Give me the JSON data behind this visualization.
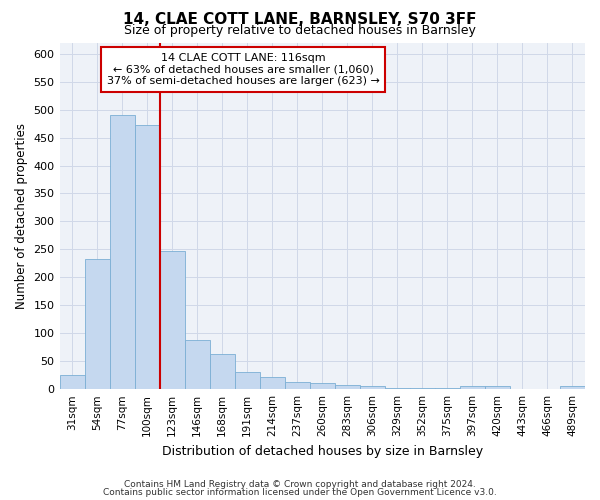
{
  "title": "14, CLAE COTT LANE, BARNSLEY, S70 3FF",
  "subtitle": "Size of property relative to detached houses in Barnsley",
  "xlabel": "Distribution of detached houses by size in Barnsley",
  "ylabel": "Number of detached properties",
  "footnote1": "Contains HM Land Registry data © Crown copyright and database right 2024.",
  "footnote2": "Contains public sector information licensed under the Open Government Licence v3.0.",
  "categories": [
    "31sqm",
    "54sqm",
    "77sqm",
    "100sqm",
    "123sqm",
    "146sqm",
    "168sqm",
    "191sqm",
    "214sqm",
    "237sqm",
    "260sqm",
    "283sqm",
    "306sqm",
    "329sqm",
    "352sqm",
    "375sqm",
    "397sqm",
    "420sqm",
    "443sqm",
    "466sqm",
    "489sqm"
  ],
  "values": [
    25,
    232,
    490,
    472,
    248,
    88,
    63,
    30,
    22,
    13,
    11,
    8,
    5,
    3,
    3,
    3,
    6,
    6,
    0,
    0,
    5
  ],
  "bar_color": "#c5d8ef",
  "bar_edge_color": "#7bafd4",
  "grid_color": "#d0d8e8",
  "background_color": "#eef2f8",
  "property_label": "14 CLAE COTT LANE: 116sqm",
  "pct_smaller": 63,
  "pct_smaller_count": 1060,
  "pct_larger": 37,
  "pct_larger_count": 623,
  "vline_x": 4.0,
  "vline_color": "#cc0000",
  "annotation_box_color": "#cc0000",
  "ylim": [
    0,
    620
  ],
  "yticks": [
    0,
    50,
    100,
    150,
    200,
    250,
    300,
    350,
    400,
    450,
    500,
    550,
    600
  ]
}
